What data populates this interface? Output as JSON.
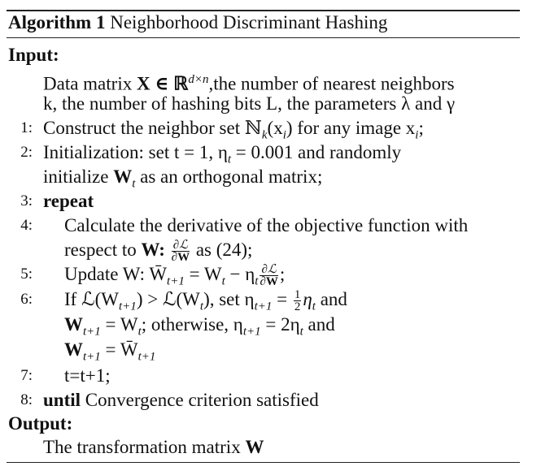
{
  "algorithm": {
    "label": "Algorithm 1",
    "title": "Neighborhood Discriminant Hashing"
  },
  "input": {
    "heading": "Input:",
    "line1_a": "Data matrix ",
    "line1_sym": "X ∈ ℝ",
    "line1_sup": "d×n",
    "line1_b": ",the number of nearest neighbors",
    "line2": "k, the number of hashing bits L, the parameters λ and γ"
  },
  "steps": [
    {
      "num": "1:",
      "text": "Construct the neighbor set ℕ"
    },
    {
      "num": "2:",
      "text": "Initialization: set t = 1, η"
    },
    {
      "num": "3:",
      "text": "repeat"
    },
    {
      "num": "4:",
      "text": "Calculate the derivative of the objective function with"
    },
    {
      "num": "5:",
      "text": "Update W: W̄"
    },
    {
      "num": "6:",
      "text": "If ℒ(W"
    },
    {
      "num": "7:",
      "text": "t=t+1;"
    },
    {
      "num": "8:",
      "text": "until"
    }
  ],
  "step1": {
    "sub": "k",
    "rest": "(x",
    "rest_sub": "i",
    "tail": ") for any image x",
    "tail_sub": "i",
    "end": ";"
  },
  "step2": {
    "sub": "t",
    "rest": " = 0.001 and randomly",
    "line2_a": "initialize ",
    "line2_sym": "W",
    "line2_sub": "t",
    "line2_b": " as an orthogonal matrix;"
  },
  "step4": {
    "line2_a": "respect to ",
    "line2_sym": "W:",
    "frac_top": "∂ℒ",
    "frac_bot": "∂W",
    "line2_b": " as (24);"
  },
  "step5": {
    "sub1": "t+1",
    "eq": " = W",
    "sub2": "t",
    "minus": " − η",
    "sub3": "t",
    "frac_top": "∂ℒ",
    "frac_bot": "∂W",
    "end": ";"
  },
  "step6": {
    "sub1": "t+1",
    "gt": ") > ℒ(W",
    "sub2": "t",
    "set": "), set η",
    "sub3": "t+1",
    "eq": " = ",
    "frac_top": "1",
    "frac_bot": "2",
    "eta": "η",
    "sub4": "t",
    "and": " and",
    "line2_a": "W",
    "line2_sub1": "t+1",
    "line2_b": " = W",
    "line2_sub2": "t",
    "line2_c": "; otherwise, η",
    "line2_sub3": "t+1",
    "line2_d": " = 2η",
    "line2_sub4": "t",
    "line2_e": " and",
    "line3_a": "W",
    "line3_sub1": "t+1",
    "line3_b": " = W̄",
    "line3_sub2": "t+1"
  },
  "step8": {
    "rest": " Convergence criterion satisfied"
  },
  "output": {
    "heading": "Output:",
    "text_a": "The transformation matrix ",
    "text_sym": "W"
  }
}
